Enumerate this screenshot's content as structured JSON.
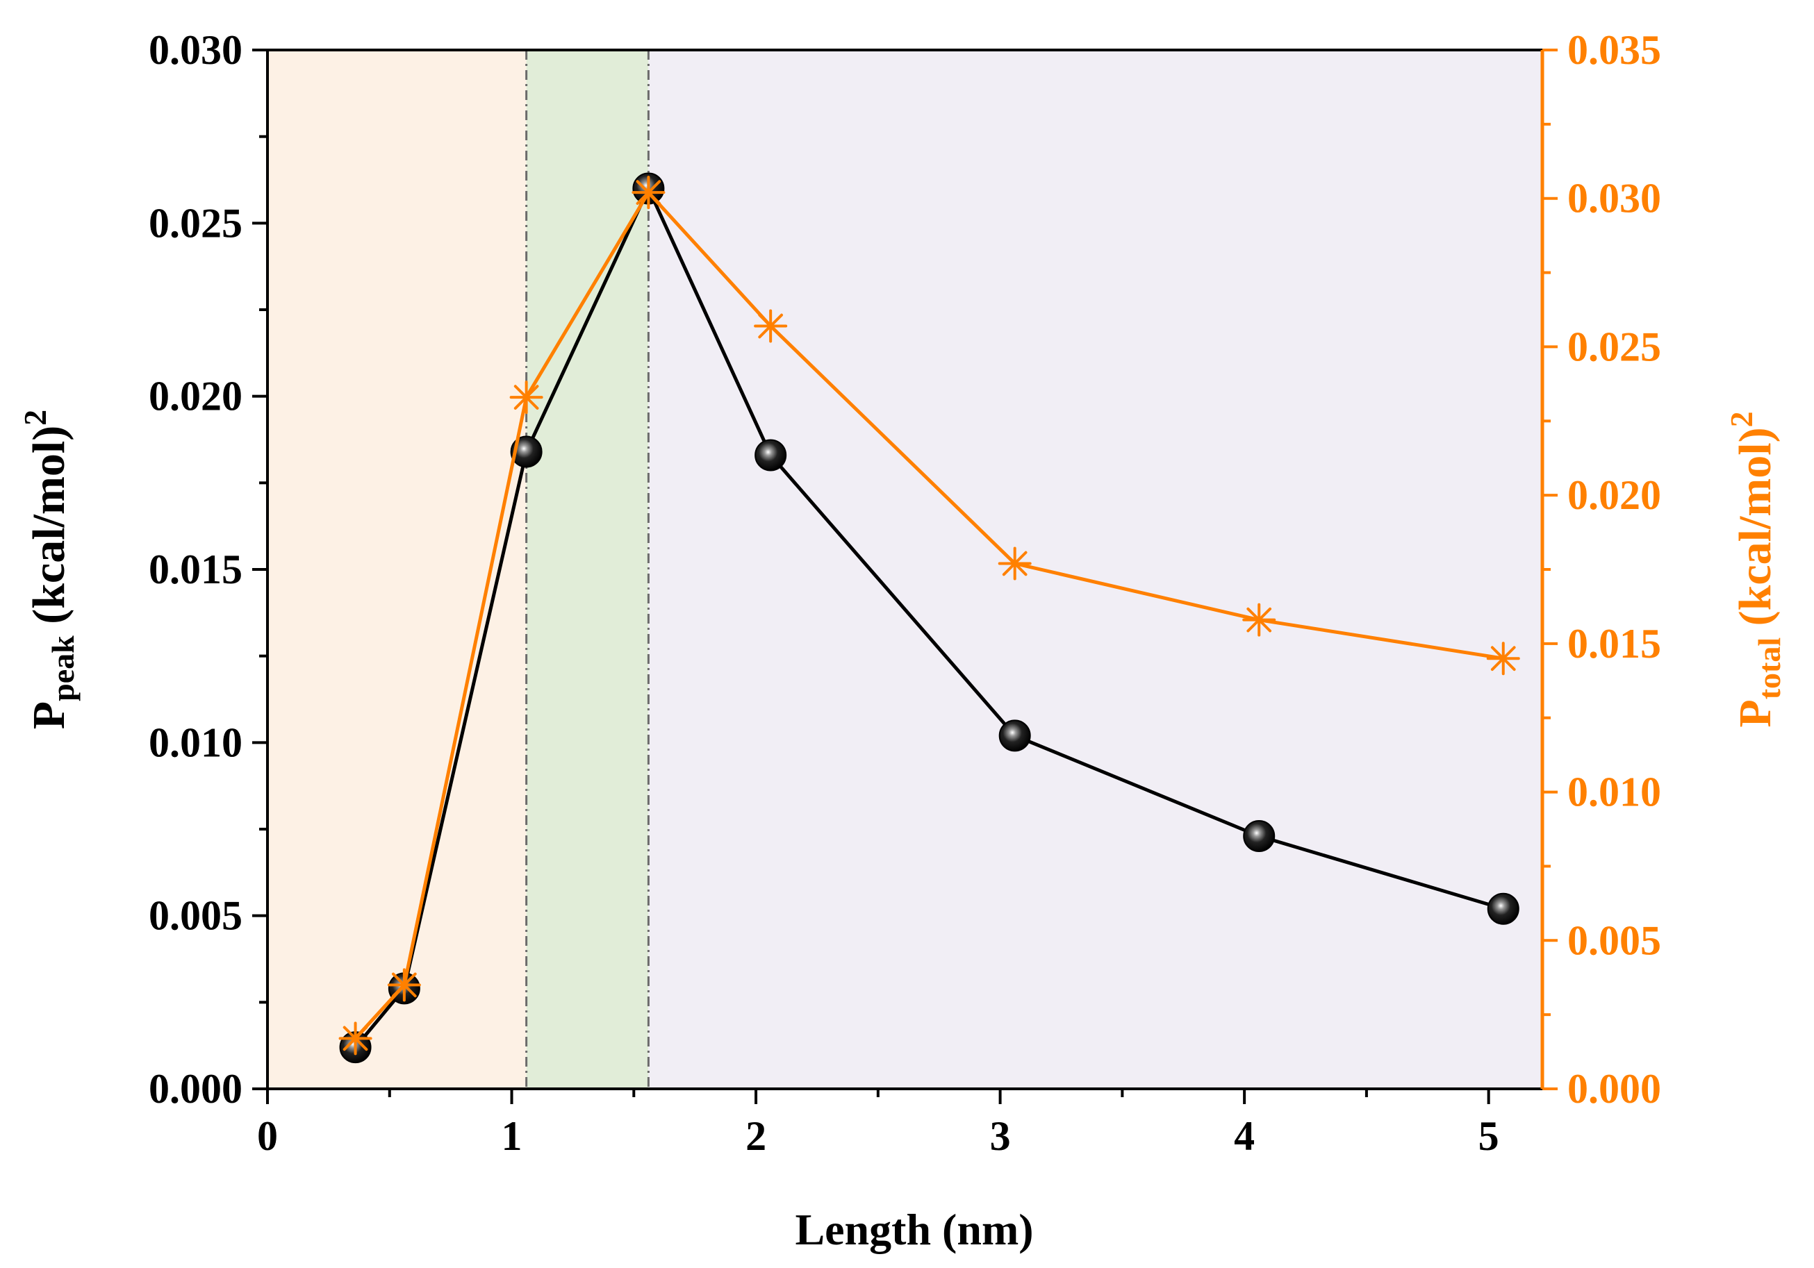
{
  "chart_data": {
    "type": "line",
    "xlabel": "Length (nm)",
    "xlim": [
      0,
      5.22
    ],
    "x_ticks": [
      0,
      1,
      2,
      3,
      4,
      5
    ],
    "x_tick_labels": [
      "0",
      "1",
      "2",
      "3",
      "4",
      "5"
    ],
    "y_left": {
      "label_main": "P",
      "label_sub": "peak",
      "label_rest": " (kcal/mol)",
      "label_sup": "2",
      "lim": [
        0,
        0.03
      ],
      "ticks": [
        0,
        0.005,
        0.01,
        0.015,
        0.02,
        0.025,
        0.03
      ],
      "tick_labels": [
        "0.000",
        "0.005",
        "0.010",
        "0.015",
        "0.020",
        "0.025",
        "0.030"
      ],
      "color": "#000000"
    },
    "y_right": {
      "label_main": "P",
      "label_sub": "total",
      "label_rest": " (kcal/mol)",
      "label_sup": "2",
      "lim": [
        0,
        0.035
      ],
      "ticks": [
        0,
        0.005,
        0.01,
        0.015,
        0.02,
        0.025,
        0.03,
        0.035
      ],
      "tick_labels": [
        "0.000",
        "0.005",
        "0.010",
        "0.015",
        "0.020",
        "0.025",
        "0.030",
        "0.035"
      ],
      "color": "#ff8000"
    },
    "regions": [
      {
        "x0": 0,
        "x1": 1.06,
        "color": "#fdf1e5"
      },
      {
        "x0": 1.06,
        "x1": 1.56,
        "color": "#e1edd8"
      },
      {
        "x0": 1.56,
        "x1": 5.22,
        "color": "#f1eef5"
      }
    ],
    "vlines": [
      1.06,
      1.56
    ],
    "series": [
      {
        "name": "P_peak",
        "axis": "left",
        "marker": "sphere",
        "color": "#000000",
        "x": [
          0.36,
          0.56,
          1.06,
          1.56,
          2.06,
          3.06,
          4.06,
          5.06
        ],
        "values": [
          0.0012,
          0.0029,
          0.0184,
          0.026,
          0.0183,
          0.0102,
          0.0073,
          0.0052
        ]
      },
      {
        "name": "P_total",
        "axis": "right",
        "marker": "asterisk",
        "color": "#ff8000",
        "x": [
          0.36,
          0.56,
          1.06,
          1.56,
          2.06,
          3.06,
          4.06,
          5.06
        ],
        "values": [
          0.0017,
          0.0035,
          0.0233,
          0.0302,
          0.0257,
          0.0177,
          0.0158,
          0.0145
        ]
      }
    ]
  }
}
